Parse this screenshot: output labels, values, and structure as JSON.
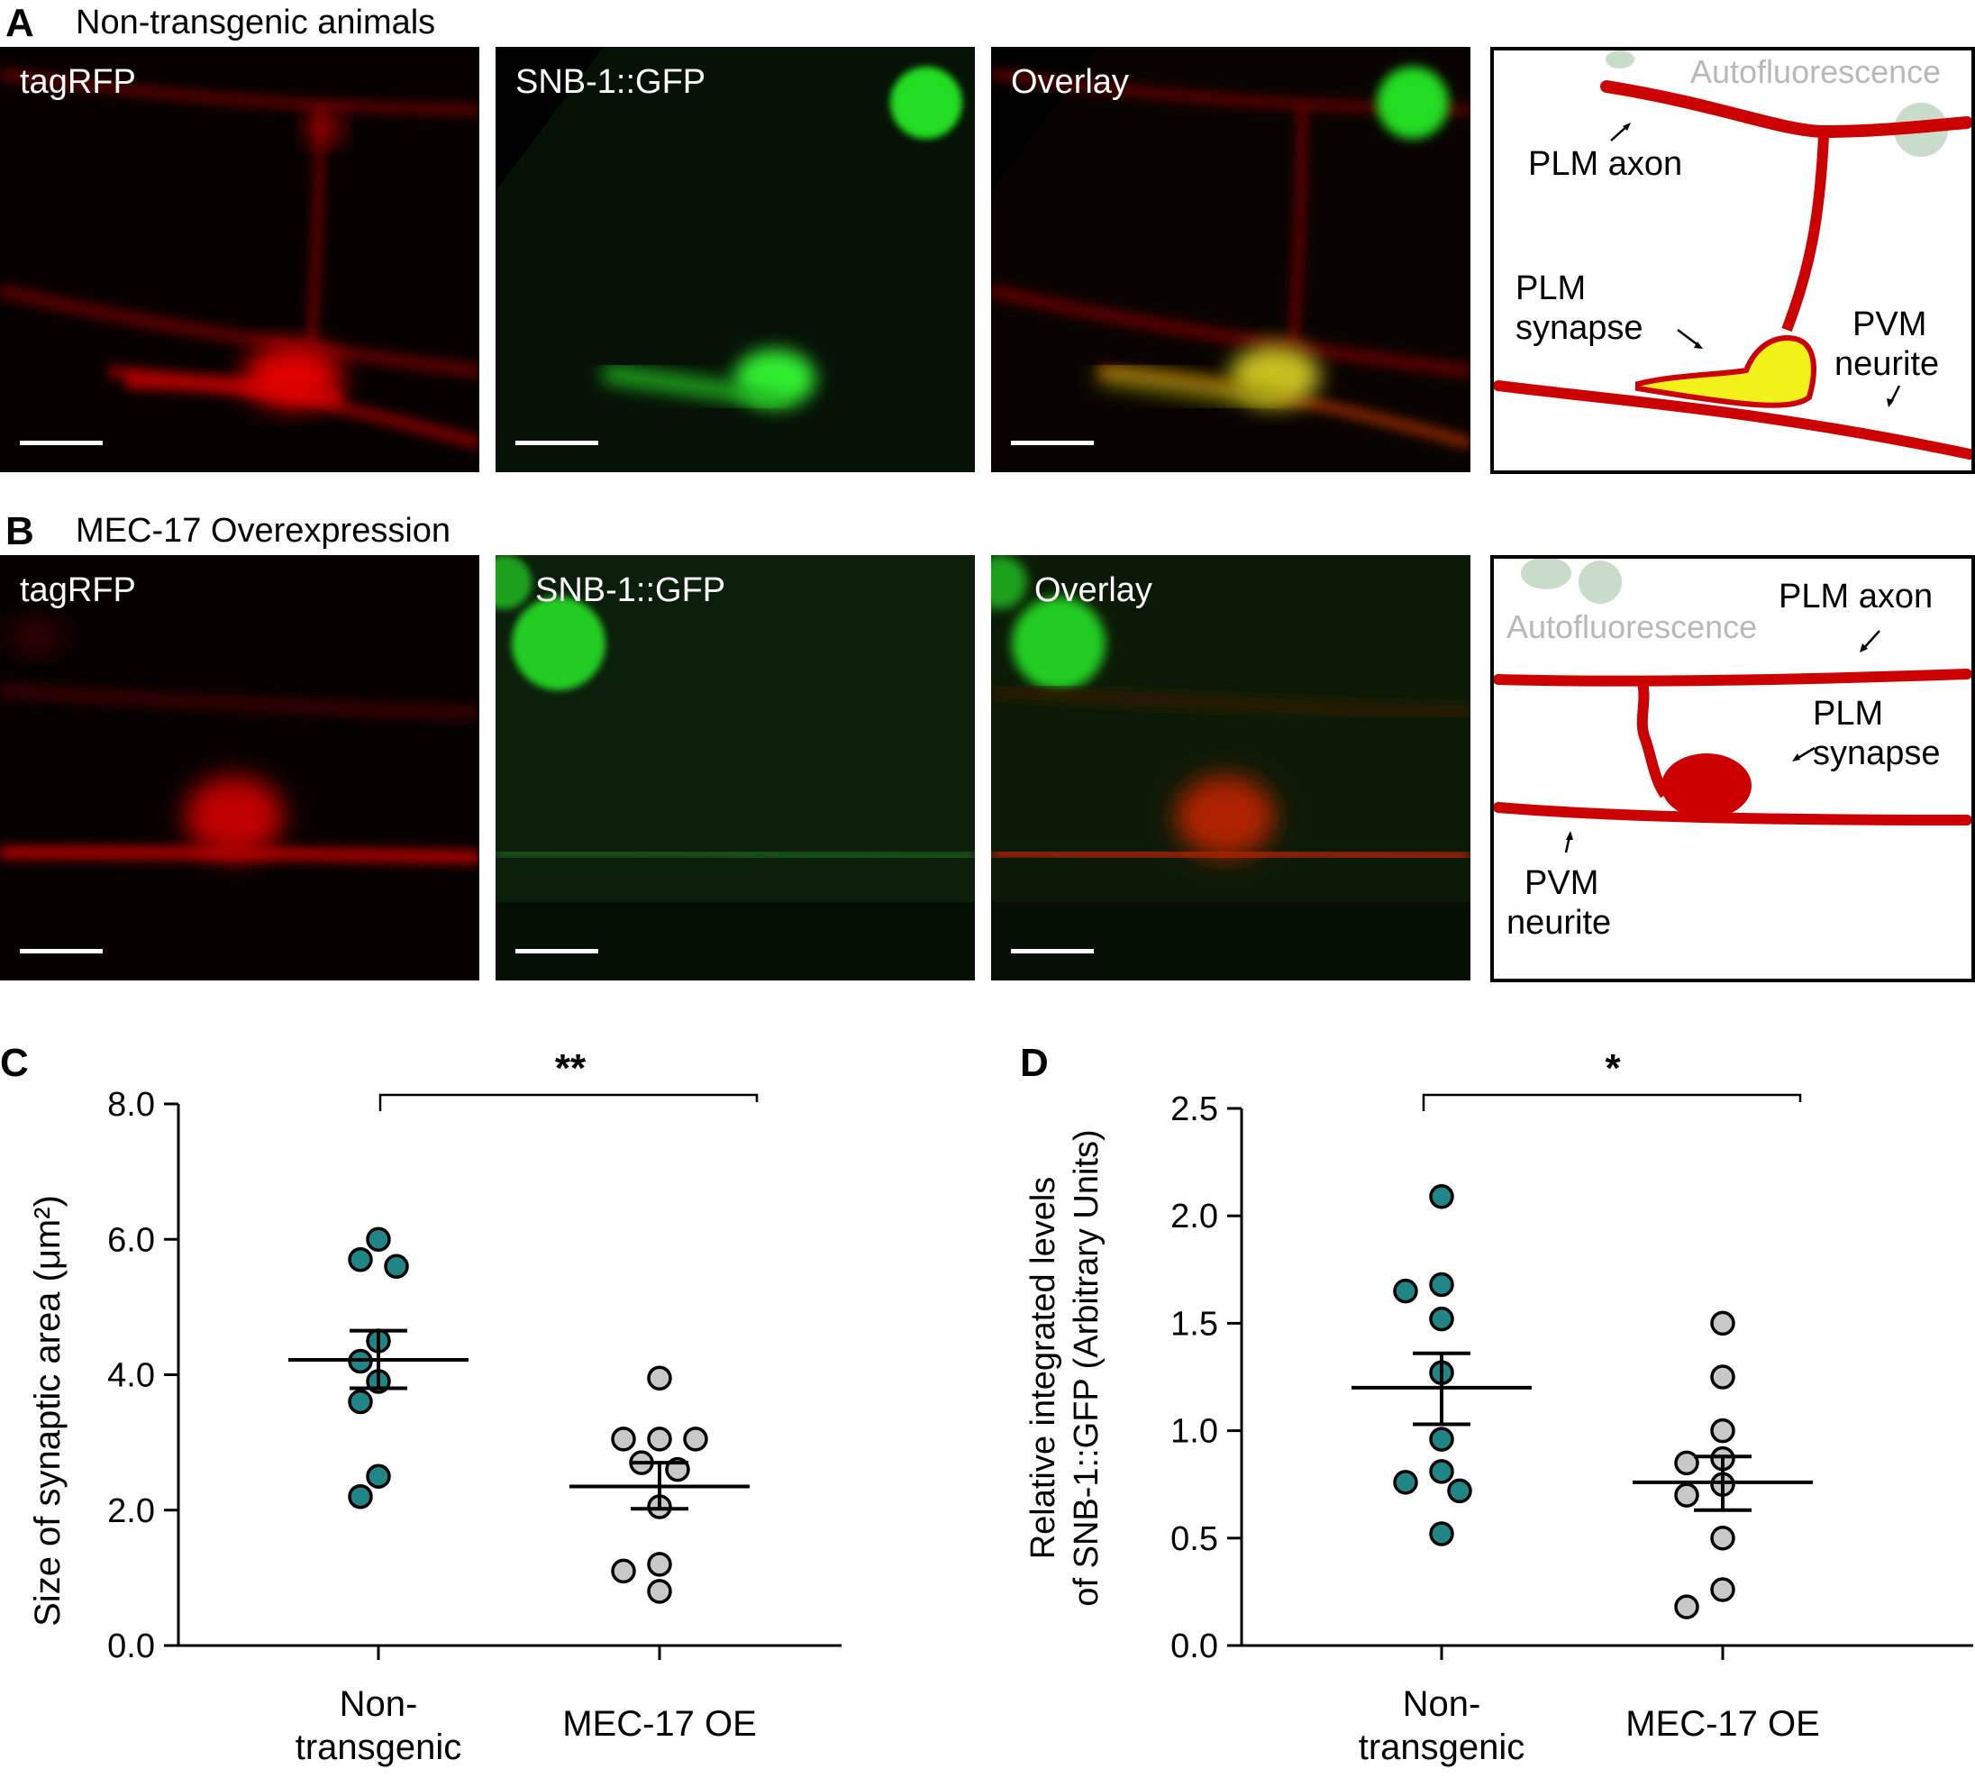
{
  "panel_a": {
    "letter": "A",
    "title": "Non-transgenic animals",
    "images": [
      {
        "label": "tagRFP"
      },
      {
        "label": "SNB-1::GFP"
      },
      {
        "label": "Overlay"
      }
    ],
    "schematic": {
      "autofluorescence": "Autofluorescence",
      "plm_axon": "PLM axon",
      "plm_synapse_1": "PLM",
      "plm_synapse_2": "synapse",
      "pvm_neurite_1": "PVM",
      "pvm_neurite_2": "neurite"
    }
  },
  "panel_b": {
    "letter": "B",
    "title": "MEC-17 Overexpression",
    "images": [
      {
        "label": "tagRFP"
      },
      {
        "label": "SNB-1::GFP"
      },
      {
        "label": "Overlay"
      }
    ],
    "schematic": {
      "autofluorescence": "Autofluorescence",
      "plm_axon": "PLM axon",
      "plm_synapse_1": "PLM",
      "plm_synapse_2": "synapse",
      "pvm_neurite_1": "PVM",
      "pvm_neurite_2": "neurite"
    }
  },
  "colors": {
    "teal": "#1f8585",
    "grey": "#c8c8c8",
    "red": "#cc0000",
    "yellow": "#f2f21a"
  },
  "chart_data": [
    {
      "panel": "C",
      "type": "scatter",
      "ylabel": "Size of synaptic area (μm²)",
      "yticks": [
        "0.0",
        "2.0",
        "4.0",
        "6.0",
        "8.0"
      ],
      "ylim": [
        0,
        8
      ],
      "categories": [
        "Non-transgenic",
        "MEC-17 OE"
      ],
      "category_lines": [
        [
          "Non-",
          "transgenic"
        ],
        [
          "MEC-17 OE"
        ]
      ],
      "significance": "**",
      "series": [
        {
          "category": "Non-transgenic",
          "color": "teal",
          "values": [
            6.0,
            5.6,
            5.7,
            4.5,
            4.2,
            3.9,
            3.6,
            2.5,
            2.2
          ],
          "mean": 4.22,
          "sem_low": 3.8,
          "sem_high": 4.65
        },
        {
          "category": "MEC-17 OE",
          "color": "grey",
          "values": [
            3.95,
            3.05,
            3.05,
            3.05,
            2.7,
            2.6,
            2.05,
            1.2,
            1.1,
            0.8
          ],
          "mean": 2.35,
          "sem_low": 2.02,
          "sem_high": 2.7
        }
      ]
    },
    {
      "panel": "D",
      "type": "scatter",
      "ylabel_lines": [
        "Relative integrated levels",
        "of SNB-1::GFP (Arbitrary Units)"
      ],
      "yticks": [
        "0.0",
        "0.5",
        "1.0",
        "1.5",
        "2.0",
        "2.5"
      ],
      "ylim": [
        0,
        2.5
      ],
      "categories": [
        "Non-transgenic",
        "MEC-17 OE"
      ],
      "category_lines": [
        [
          "Non-",
          "transgenic"
        ],
        [
          "MEC-17 OE"
        ]
      ],
      "significance": "*",
      "series": [
        {
          "category": "Non-transgenic",
          "color": "teal",
          "values": [
            2.09,
            1.68,
            1.65,
            1.52,
            1.27,
            0.96,
            0.81,
            0.76,
            0.72,
            0.52
          ],
          "mean": 1.2,
          "sem_low": 1.03,
          "sem_high": 1.36
        },
        {
          "category": "MEC-17 OE",
          "color": "grey",
          "values": [
            1.5,
            1.25,
            1.0,
            0.87,
            0.85,
            0.75,
            0.7,
            0.5,
            0.26,
            0.18
          ],
          "mean": 0.76,
          "sem_low": 0.63,
          "sem_high": 0.88
        }
      ]
    }
  ]
}
